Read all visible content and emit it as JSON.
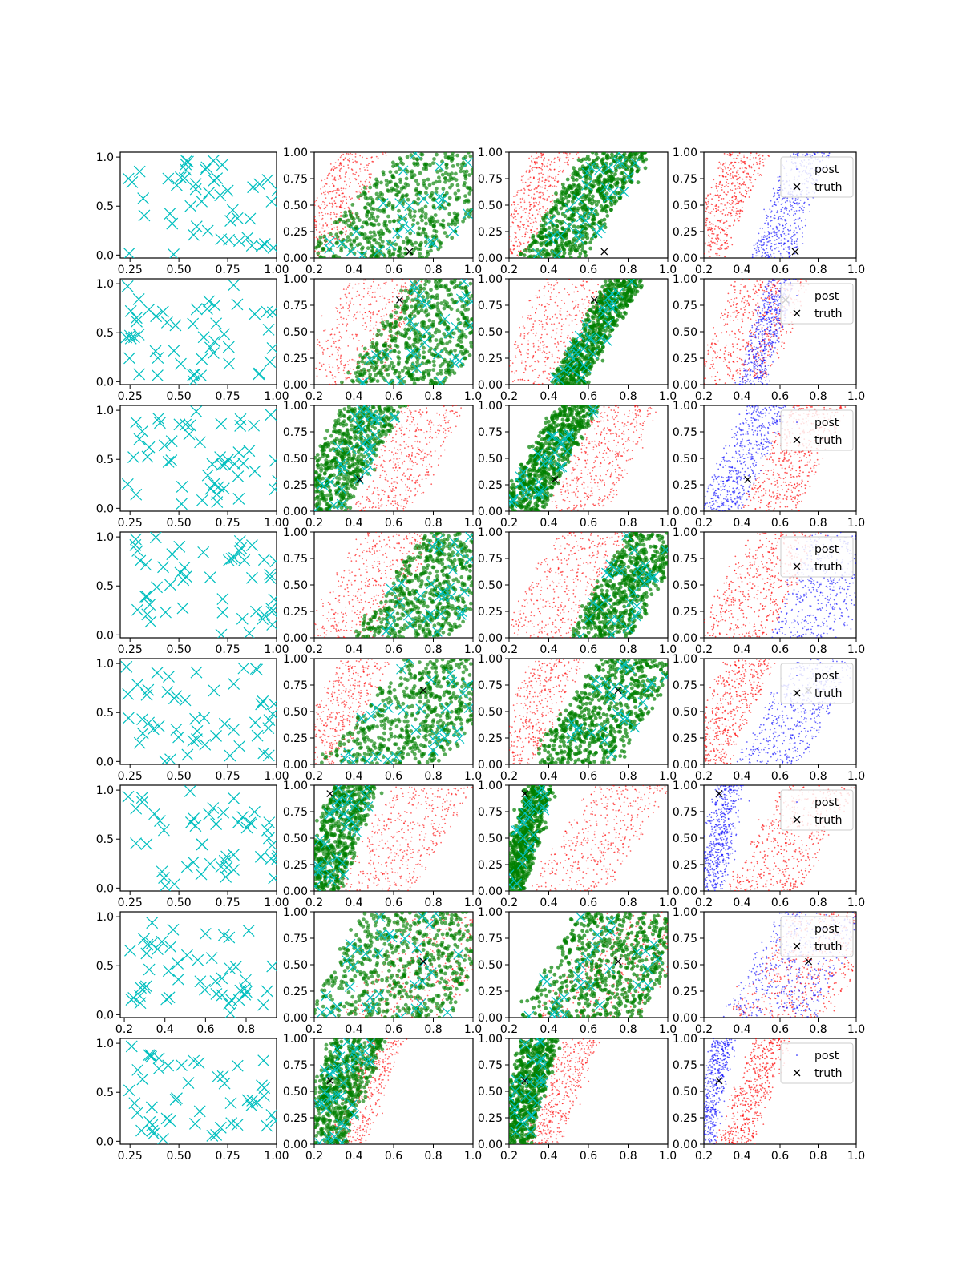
{
  "figure": {
    "layout": "8 rows x 4 columns",
    "colors": {
      "samples": "#00bfbf",
      "posterior_a": "#ff0000",
      "posterior_b": "#008000",
      "posterior_c": "#0000ff",
      "truth": "#000000"
    }
  },
  "legend": {
    "post_label": "post",
    "truth_label": "truth"
  },
  "chart_data": [
    {
      "row": 1,
      "type": "scatter",
      "truth": [
        0.68,
        0.06
      ],
      "legend": "upper right",
      "col1": {
        "xlim": [
          0.2,
          1.0
        ],
        "xticks": [
          "0.25",
          "0.50",
          "0.75",
          "1.00"
        ],
        "ylim": [
          -0.03,
          1.05
        ],
        "yticks": [
          "0.0",
          "0.5",
          "1.0"
        ],
        "series": "cyan x samples"
      },
      "bands": {
        "red": {
          "left": 0.2,
          "right": 0.42,
          "slope": 0.25
        },
        "green": {
          "left": 0.38,
          "right": 1.06,
          "slope": 0.55
        },
        "green3": {
          "left": 0.42,
          "right": 0.74,
          "slope": 0.35
        },
        "blue": {
          "left": 0.55,
          "right": 0.76,
          "slope": 0.2
        }
      }
    },
    {
      "row": 2,
      "type": "scatter",
      "truth": [
        0.63,
        0.8
      ],
      "legend": "upper right",
      "col1": {
        "xlim": [
          0.2,
          1.0
        ],
        "xticks": [
          "0.25",
          "0.50",
          "0.75",
          "1.00"
        ],
        "ylim": [
          -0.03,
          1.05
        ],
        "yticks": [
          "0.0",
          "0.5",
          "1.0"
        ],
        "series": "cyan x samples"
      },
      "bands": {
        "red": {
          "left": 0.25,
          "right": 0.64,
          "slope": 0.25
        },
        "green": {
          "left": 0.52,
          "right": 1.05,
          "slope": 0.35
        },
        "green3": {
          "left": 0.56,
          "right": 0.72,
          "slope": 0.3
        },
        "blue": {
          "left": 0.46,
          "right": 0.6,
          "slope": 0.15
        }
      }
    },
    {
      "row": 3,
      "type": "scatter",
      "truth": [
        0.43,
        0.3
      ],
      "legend": "upper right",
      "col1": {
        "xlim": [
          0.2,
          1.0
        ],
        "xticks": [
          "0.25",
          "0.50",
          "0.75",
          "1.00"
        ],
        "ylim": [
          -0.03,
          1.05
        ],
        "yticks": [
          "0.0",
          "0.5",
          "1.0"
        ],
        "series": "cyan x samples"
      },
      "bands": {
        "red": {
          "left": 0.52,
          "right": 0.82,
          "slope": 0.25
        },
        "green": {
          "left": 0.2,
          "right": 0.5,
          "slope": 0.3
        },
        "green3": {
          "left": 0.3,
          "right": 0.5,
          "slope": 0.3
        },
        "blue": {
          "left": 0.3,
          "right": 0.52,
          "slope": 0.25
        }
      }
    },
    {
      "row": 4,
      "type": "scatter",
      "truth": null,
      "legend": "upper right",
      "col1": {
        "xlim": [
          0.2,
          1.0
        ],
        "xticks": [
          "0.25",
          "0.50",
          "0.75",
          "1.00"
        ],
        "ylim": [
          -0.03,
          1.05
        ],
        "yticks": [
          "0.0",
          "0.5",
          "1.0"
        ],
        "series": "cyan x samples"
      },
      "bands": {
        "red": {
          "left": 0.3,
          "right": 0.68,
          "slope": 0.3
        },
        "green": {
          "left": 0.58,
          "right": 1.05,
          "slope": 0.35
        },
        "green3": {
          "left": 0.65,
          "right": 0.95,
          "slope": 0.3
        },
        "blue": {
          "left": 0.66,
          "right": 1.05,
          "slope": 0.2
        }
      }
    },
    {
      "row": 5,
      "type": "scatter",
      "truth": [
        0.75,
        0.7
      ],
      "legend": "upper right",
      "col1": {
        "xlim": [
          0.2,
          1.0
        ],
        "xticks": [
          "0.25",
          "0.50",
          "0.75",
          "1.00"
        ],
        "ylim": [
          -0.03,
          1.05
        ],
        "yticks": [
          "0.0",
          "0.5",
          "1.0"
        ],
        "series": "cyan x samples"
      },
      "bands": {
        "red": {
          "left": 0.2,
          "right": 0.45,
          "slope": 0.25
        },
        "green": {
          "left": 0.45,
          "right": 1.05,
          "slope": 0.45
        },
        "green3": {
          "left": 0.48,
          "right": 0.9,
          "slope": 0.35
        },
        "blue": {
          "left": 0.52,
          "right": 0.86,
          "slope": 0.3
        }
      }
    },
    {
      "row": 6,
      "type": "scatter",
      "truth": [
        0.28,
        0.92
      ],
      "legend": "upper right",
      "col1": {
        "xlim": [
          0.2,
          1.0
        ],
        "xticks": [
          "0.25",
          "0.50",
          "0.75",
          "1.00"
        ],
        "ylim": [
          -0.03,
          1.05
        ],
        "yticks": [
          "0.0",
          "0.5",
          "1.0"
        ],
        "series": "cyan x samples"
      },
      "bands": {
        "red": {
          "left": 0.46,
          "right": 0.85,
          "slope": 0.3
        },
        "green": {
          "left": 0.2,
          "right": 0.42,
          "slope": 0.2
        },
        "green3": {
          "left": 0.22,
          "right": 0.34,
          "slope": 0.15
        },
        "blue": {
          "left": 0.22,
          "right": 0.35,
          "slope": 0.1
        }
      }
    },
    {
      "row": 7,
      "type": "scatter",
      "truth": [
        0.75,
        0.53
      ],
      "legend": "upper right",
      "col1": {
        "xlim": [
          0.18,
          0.95
        ],
        "xticks": [
          "0.2",
          "0.4",
          "0.6",
          "0.8"
        ],
        "ylim": [
          -0.03,
          1.05
        ],
        "yticks": [
          "0.0",
          "0.5",
          "1.0"
        ],
        "series": "cyan x samples"
      },
      "bands": {
        "red": {
          "left": 0.5,
          "right": 1.02,
          "slope": 0.35
        },
        "green": {
          "left": 0.3,
          "right": 1.02,
          "slope": 0.3
        },
        "green3": {
          "left": 0.4,
          "right": 1.0,
          "slope": 0.3
        },
        "blue": {
          "left": 0.45,
          "right": 0.92,
          "slope": 0.3
        }
      }
    },
    {
      "row": 8,
      "type": "scatter",
      "truth": [
        0.28,
        0.6
      ],
      "legend": "upper right",
      "col1": {
        "xlim": [
          0.2,
          1.0
        ],
        "xticks": [
          "0.25",
          "0.50",
          "0.75",
          "1.00"
        ],
        "ylim": [
          -0.03,
          1.05
        ],
        "yticks": [
          "0.0",
          "0.5",
          "1.0"
        ],
        "series": "cyan x samples"
      },
      "bands": {
        "red": {
          "left": 0.37,
          "right": 0.55,
          "slope": 0.2
        },
        "green": {
          "left": 0.2,
          "right": 0.45,
          "slope": 0.2
        },
        "green3": {
          "left": 0.2,
          "right": 0.37,
          "slope": 0.15
        },
        "blue": {
          "left": 0.2,
          "right": 0.3,
          "slope": 0.1
        }
      }
    }
  ],
  "panel_axes": {
    "posterior_xlim": [
      0.2,
      1.0
    ],
    "posterior_xticks": [
      "0.2",
      "0.4",
      "0.6",
      "0.8",
      "1.0"
    ],
    "posterior_ylim": [
      0.0,
      1.0
    ],
    "posterior_yticks": [
      "0.00",
      "0.25",
      "0.50",
      "0.75",
      "1.00"
    ]
  }
}
